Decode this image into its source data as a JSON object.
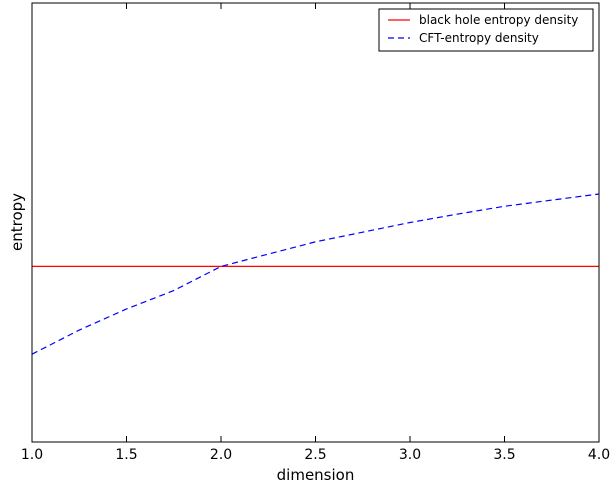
{
  "chart_data": {
    "type": "line",
    "title": "",
    "xlabel": "dimension",
    "ylabel": "entropy",
    "xlim": [
      1.0,
      4.0
    ],
    "ylim": [
      0,
      1
    ],
    "x_ticks": [
      "1.0",
      "1.5",
      "2.0",
      "2.5",
      "3.0",
      "3.5",
      "4.0"
    ],
    "y_ticks_shown": false,
    "grid": false,
    "legend_position": "top-right",
    "series": [
      {
        "name": "black hole entropy density",
        "color": "#ff0000",
        "style": "solid",
        "x": [
          1.0,
          1.5,
          2.0,
          2.5,
          3.0,
          3.5,
          4.0
        ],
        "y": [
          0.4,
          0.4,
          0.4,
          0.4,
          0.4,
          0.4,
          0.4
        ]
      },
      {
        "name": "CFT-entropy density",
        "color": "#0000ff",
        "style": "dashed",
        "x": [
          1.0,
          1.25,
          1.5,
          1.75,
          2.0,
          2.25,
          2.5,
          2.75,
          3.0,
          3.25,
          3.5,
          3.75,
          4.0
        ],
        "y": [
          0.2,
          0.255,
          0.303,
          0.345,
          0.4,
          0.428,
          0.456,
          0.478,
          0.5,
          0.519,
          0.537,
          0.551,
          0.565
        ]
      }
    ]
  }
}
